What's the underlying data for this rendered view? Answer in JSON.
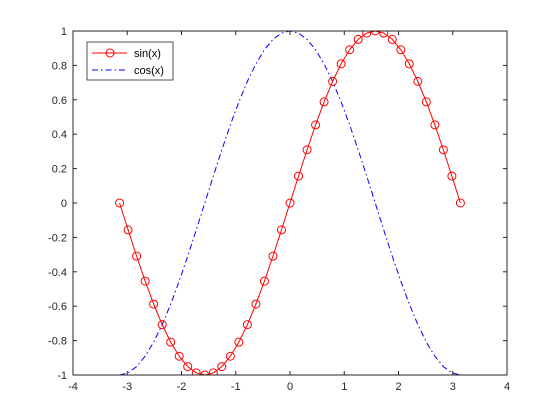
{
  "chart_data": {
    "type": "line",
    "title": "",
    "xlabel": "",
    "ylabel": "",
    "xlim": [
      -4,
      4
    ],
    "ylim": [
      -1,
      1
    ],
    "xticks": [
      -4,
      -3,
      -2,
      -1,
      0,
      1,
      2,
      3,
      4
    ],
    "yticks": [
      -1,
      -0.8,
      -0.6,
      -0.4,
      -0.2,
      0,
      0.2,
      0.4,
      0.6,
      0.8,
      1
    ],
    "xtick_labels": [
      "-4",
      "-3",
      "-2",
      "-1",
      "0",
      "1",
      "2",
      "3",
      "4"
    ],
    "ytick_labels": [
      "-1",
      "-0.8",
      "-0.6",
      "-0.4",
      "-0.2",
      "0",
      "0.2",
      "0.4",
      "0.6",
      "0.8",
      "1"
    ],
    "grid": false,
    "legend_position": "top-left",
    "series": [
      {
        "name": "sin(x)",
        "color": "#ff0000",
        "line_style": "solid",
        "marker": "circle",
        "x": [
          -3.1416,
          -2.9845,
          -2.8274,
          -2.6704,
          -2.5133,
          -2.3562,
          -2.1991,
          -2.042,
          -1.885,
          -1.7279,
          -1.5708,
          -1.4137,
          -1.2566,
          -1.0996,
          -0.9425,
          -0.7854,
          -0.6283,
          -0.4712,
          -0.3142,
          -0.1571,
          0.0,
          0.1571,
          0.3142,
          0.4712,
          0.6283,
          0.7854,
          0.9425,
          1.0996,
          1.2566,
          1.4137,
          1.5708,
          1.7279,
          1.885,
          2.042,
          2.1991,
          2.3562,
          2.5133,
          2.6704,
          2.8274,
          2.9845,
          3.1416
        ],
        "y": [
          0.0,
          -0.1564,
          -0.309,
          -0.454,
          -0.5878,
          -0.7071,
          -0.809,
          -0.891,
          -0.9511,
          -0.9877,
          -1.0,
          -0.9877,
          -0.9511,
          -0.891,
          -0.809,
          -0.7071,
          -0.5878,
          -0.454,
          -0.309,
          -0.1564,
          0.0,
          0.1564,
          0.309,
          0.454,
          0.5878,
          0.7071,
          0.809,
          0.891,
          0.9511,
          0.9877,
          1.0,
          0.9877,
          0.9511,
          0.891,
          0.809,
          0.7071,
          0.5878,
          0.454,
          0.309,
          0.1564,
          0.0
        ]
      },
      {
        "name": "cos(x)",
        "color": "#0000ff",
        "line_style": "dash-dot",
        "marker": "none",
        "x": [
          -3.1416,
          -2.9845,
          -2.8274,
          -2.6704,
          -2.5133,
          -2.3562,
          -2.1991,
          -2.042,
          -1.885,
          -1.7279,
          -1.5708,
          -1.4137,
          -1.2566,
          -1.0996,
          -0.9425,
          -0.7854,
          -0.6283,
          -0.4712,
          -0.3142,
          -0.1571,
          0.0,
          0.1571,
          0.3142,
          0.4712,
          0.6283,
          0.7854,
          0.9425,
          1.0996,
          1.2566,
          1.4137,
          1.5708,
          1.7279,
          1.885,
          2.042,
          2.1991,
          2.3562,
          2.5133,
          2.6704,
          2.8274,
          2.9845,
          3.1416
        ],
        "y": [
          -1.0,
          -0.9877,
          -0.9511,
          -0.891,
          -0.809,
          -0.7071,
          -0.5878,
          -0.454,
          -0.309,
          -0.1564,
          0.0,
          0.1564,
          0.309,
          0.454,
          0.5878,
          0.7071,
          0.809,
          0.891,
          0.9511,
          0.9877,
          1.0,
          0.9877,
          0.9511,
          0.891,
          0.809,
          0.7071,
          0.5878,
          0.454,
          0.309,
          0.1564,
          0.0,
          -0.1564,
          -0.309,
          -0.454,
          -0.5878,
          -0.7071,
          -0.809,
          -0.891,
          -0.9511,
          -0.9877,
          -1.0
        ]
      }
    ]
  }
}
